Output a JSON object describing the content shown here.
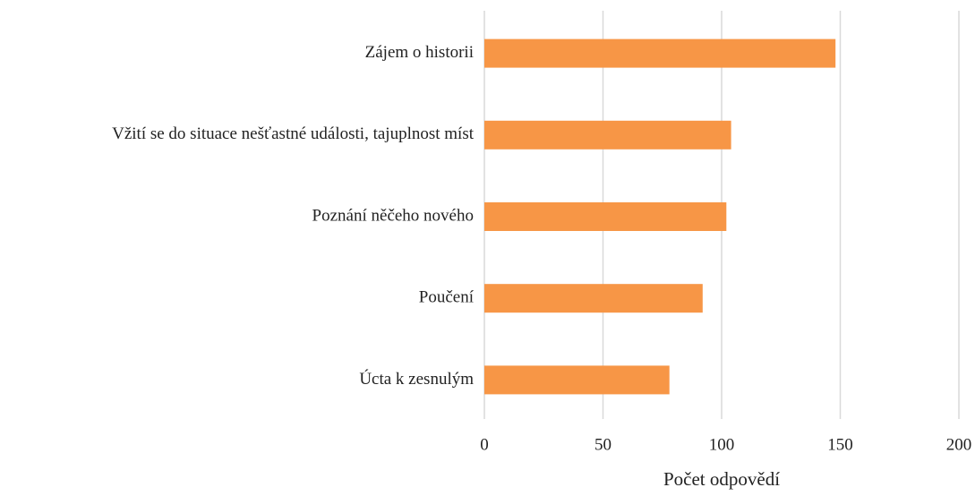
{
  "chart_data": {
    "type": "bar",
    "orientation": "horizontal",
    "categories": [
      "Zájem o historii",
      "Vžití se do situace nešťastné události, tajuplnost míst",
      "Poznání něčeho nového",
      "Poučení",
      "Úcta k zesnulým"
    ],
    "values": [
      148,
      104,
      102,
      92,
      78
    ],
    "color": "#f79646",
    "xlabel": "Počet odpovědí",
    "xlim": [
      0,
      200
    ],
    "xticks": [
      0,
      50,
      100,
      150,
      200
    ],
    "grid": true
  }
}
